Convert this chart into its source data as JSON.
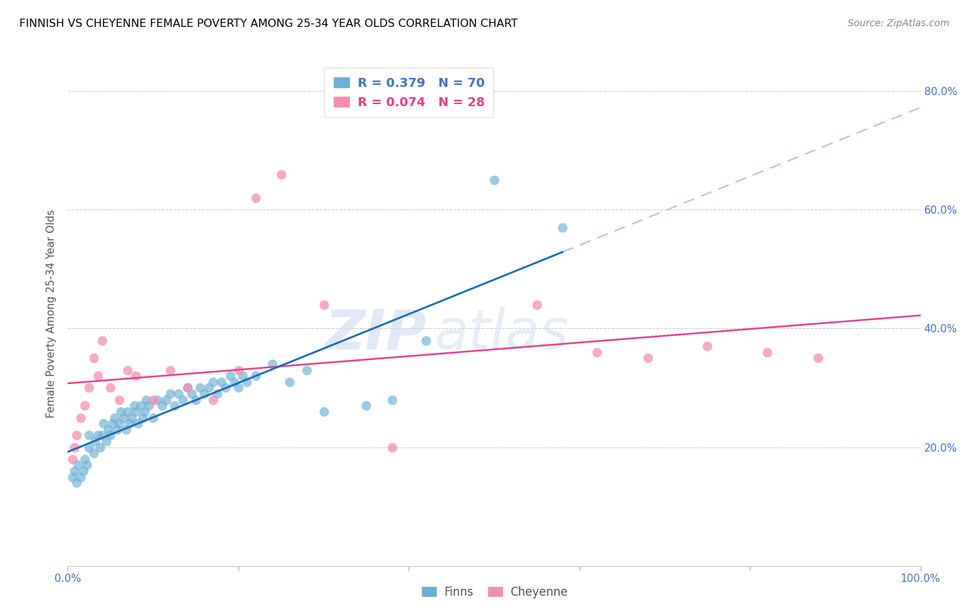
{
  "title": "FINNISH VS CHEYENNE FEMALE POVERTY AMONG 25-34 YEAR OLDS CORRELATION CHART",
  "source": "Source: ZipAtlas.com",
  "ylabel": "Female Poverty Among 25-34 Year Olds",
  "xlim": [
    0.0,
    1.0
  ],
  "ylim": [
    0.0,
    0.85
  ],
  "xticks": [
    0.0,
    0.2,
    0.4,
    0.6,
    0.8,
    1.0
  ],
  "xtick_labels": [
    "0.0%",
    "",
    "",
    "",
    "",
    "100.0%"
  ],
  "yticks": [
    0.0,
    0.2,
    0.4,
    0.6,
    0.8
  ],
  "ytick_labels_right": [
    "",
    "20.0%",
    "40.0%",
    "60.0%",
    "80.0%"
  ],
  "finns_color": "#6baed6",
  "cheyenne_color": "#f48fb1",
  "trend_finn_color": "#1a6bb5",
  "trend_cheyenne_color": "#e83e8c",
  "trend_finn_dashed_color": "#a8c8e8",
  "R_finn": 0.379,
  "N_finn": 70,
  "R_cheyenne": 0.074,
  "N_cheyenne": 28,
  "finns_x": [
    0.005,
    0.008,
    0.01,
    0.012,
    0.015,
    0.018,
    0.02,
    0.022,
    0.025,
    0.025,
    0.03,
    0.032,
    0.035,
    0.038,
    0.04,
    0.042,
    0.045,
    0.047,
    0.05,
    0.052,
    0.055,
    0.058,
    0.06,
    0.062,
    0.065,
    0.068,
    0.07,
    0.072,
    0.075,
    0.078,
    0.08,
    0.082,
    0.085,
    0.088,
    0.09,
    0.092,
    0.095,
    0.1,
    0.105,
    0.11,
    0.115,
    0.12,
    0.125,
    0.13,
    0.135,
    0.14,
    0.145,
    0.15,
    0.155,
    0.16,
    0.165,
    0.17,
    0.175,
    0.18,
    0.185,
    0.19,
    0.195,
    0.2,
    0.205,
    0.21,
    0.22,
    0.24,
    0.26,
    0.28,
    0.3,
    0.35,
    0.38,
    0.42,
    0.5,
    0.58
  ],
  "finns_y": [
    0.15,
    0.16,
    0.14,
    0.17,
    0.15,
    0.16,
    0.18,
    0.17,
    0.2,
    0.22,
    0.19,
    0.21,
    0.22,
    0.2,
    0.22,
    0.24,
    0.21,
    0.23,
    0.22,
    0.24,
    0.25,
    0.23,
    0.24,
    0.26,
    0.25,
    0.23,
    0.26,
    0.24,
    0.25,
    0.27,
    0.26,
    0.24,
    0.27,
    0.25,
    0.26,
    0.28,
    0.27,
    0.25,
    0.28,
    0.27,
    0.28,
    0.29,
    0.27,
    0.29,
    0.28,
    0.3,
    0.29,
    0.28,
    0.3,
    0.29,
    0.3,
    0.31,
    0.29,
    0.31,
    0.3,
    0.32,
    0.31,
    0.3,
    0.32,
    0.31,
    0.32,
    0.34,
    0.31,
    0.33,
    0.26,
    0.27,
    0.28,
    0.38,
    0.65,
    0.57
  ],
  "cheyenne_x": [
    0.005,
    0.008,
    0.01,
    0.015,
    0.02,
    0.025,
    0.03,
    0.035,
    0.04,
    0.05,
    0.06,
    0.07,
    0.08,
    0.1,
    0.12,
    0.14,
    0.17,
    0.2,
    0.22,
    0.25,
    0.3,
    0.38,
    0.55,
    0.62,
    0.68,
    0.75,
    0.82,
    0.88
  ],
  "cheyenne_y": [
    0.18,
    0.2,
    0.22,
    0.25,
    0.27,
    0.3,
    0.35,
    0.32,
    0.38,
    0.3,
    0.28,
    0.33,
    0.32,
    0.28,
    0.33,
    0.3,
    0.28,
    0.33,
    0.62,
    0.66,
    0.44,
    0.2,
    0.44,
    0.36,
    0.35,
    0.37,
    0.36,
    0.35
  ],
  "watermark_zip": "ZIP",
  "watermark_atlas": "atlas",
  "background_color": "#ffffff",
  "grid_color": "#cccccc",
  "tick_color": "#4472c4",
  "title_color": "#000000",
  "axis_label_color": "#555555",
  "legend_edge_color": "#dddddd",
  "source_color": "#888888"
}
